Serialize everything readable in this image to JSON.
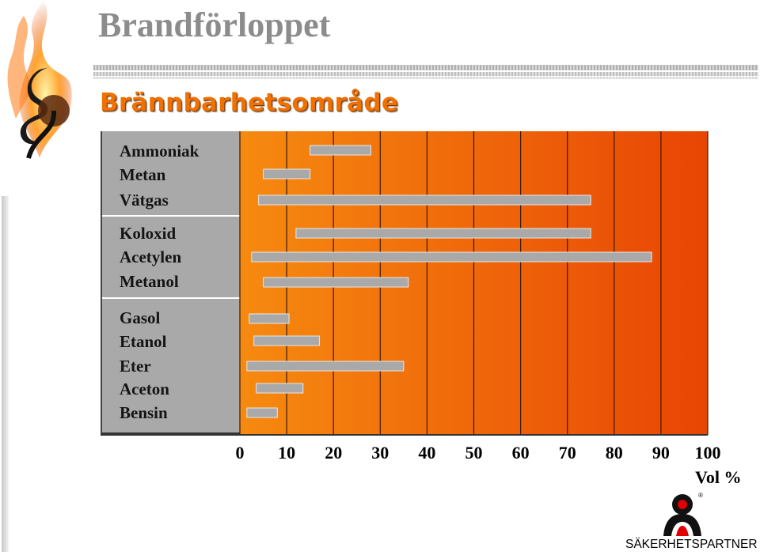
{
  "header": {
    "title": "Brandförloppet",
    "subtitle": "Brännbarhetsområde"
  },
  "logo": {
    "icon": "flame-logo-icon"
  },
  "brand": {
    "name": "SÄKERHETSPARTNER",
    "registered": "®",
    "icon": "person-logo-icon"
  },
  "colors": {
    "title": "#8c8c8c",
    "subtitle": "#f07000",
    "label_panel": "#a9a9a9",
    "plot_gradient_start": "#f68a10",
    "plot_gradient_end": "#e84504",
    "bar_fill": "#a9a9a9"
  },
  "chart_data": {
    "type": "bar",
    "orientation": "horizontal",
    "floating_bars": true,
    "categories": [
      "Ammoniak",
      "Metan",
      "Vätgas",
      "Koloxid",
      "Acetylen",
      "Metanol",
      "Gasol",
      "Etanol",
      "Eter",
      "Aceton",
      "Bensin"
    ],
    "groups": [
      [
        "Ammoniak",
        "Metan",
        "Vätgas"
      ],
      [
        "Koloxid",
        "Acetylen",
        "Metanol"
      ],
      [
        "Gasol",
        "Etanol",
        "Eter",
        "Aceton",
        "Bensin"
      ]
    ],
    "ranges": [
      [
        15,
        28
      ],
      [
        5,
        15
      ],
      [
        4,
        75
      ],
      [
        12,
        75
      ],
      [
        2.5,
        88
      ],
      [
        5,
        36
      ],
      [
        2,
        10.5
      ],
      [
        3,
        17
      ],
      [
        1.5,
        35
      ],
      [
        3.5,
        13.5
      ],
      [
        1.5,
        8
      ]
    ],
    "xlim": [
      0,
      100
    ],
    "xticks": [
      "0",
      "10",
      "20",
      "30",
      "40",
      "50",
      "60",
      "70",
      "80",
      "90",
      "100"
    ],
    "xlabel": "Vol %",
    "grid": "vertical"
  }
}
